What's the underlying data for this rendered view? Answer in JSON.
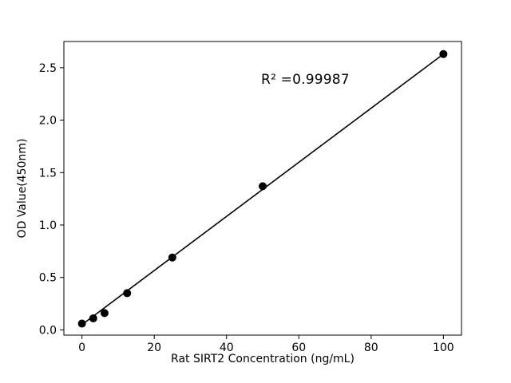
{
  "chart_data": {
    "type": "scatter",
    "title": "",
    "xlabel": "Rat SIRT2 Concentration (ng/mL)",
    "ylabel": "OD Value(450nm)",
    "x": [
      0,
      3.125,
      6.25,
      12.5,
      25,
      50,
      100
    ],
    "y": [
      0.06,
      0.11,
      0.16,
      0.35,
      0.69,
      1.37,
      2.63
    ],
    "fit_line": {
      "x": [
        0,
        100
      ],
      "y": [
        0.05,
        2.63
      ]
    },
    "annotation": {
      "text": "R² =0.99987",
      "x": 50,
      "y": 2.38
    },
    "xlim": [
      -5,
      105
    ],
    "ylim": [
      -0.05,
      2.75
    ],
    "xticks": [
      0,
      20,
      40,
      60,
      80,
      100
    ],
    "xtick_labels": [
      "0",
      "20",
      "40",
      "60",
      "80",
      "100"
    ],
    "yticks": [
      0,
      0.5,
      1.0,
      1.5,
      2.0,
      2.5
    ],
    "ytick_labels": [
      "0.0",
      "0.5",
      "1.0",
      "1.5",
      "2.0",
      "2.5"
    ],
    "marker_color": "#000000",
    "line_color": "#000000",
    "frame_color": "#000000",
    "legend": "none",
    "grid": "off"
  }
}
